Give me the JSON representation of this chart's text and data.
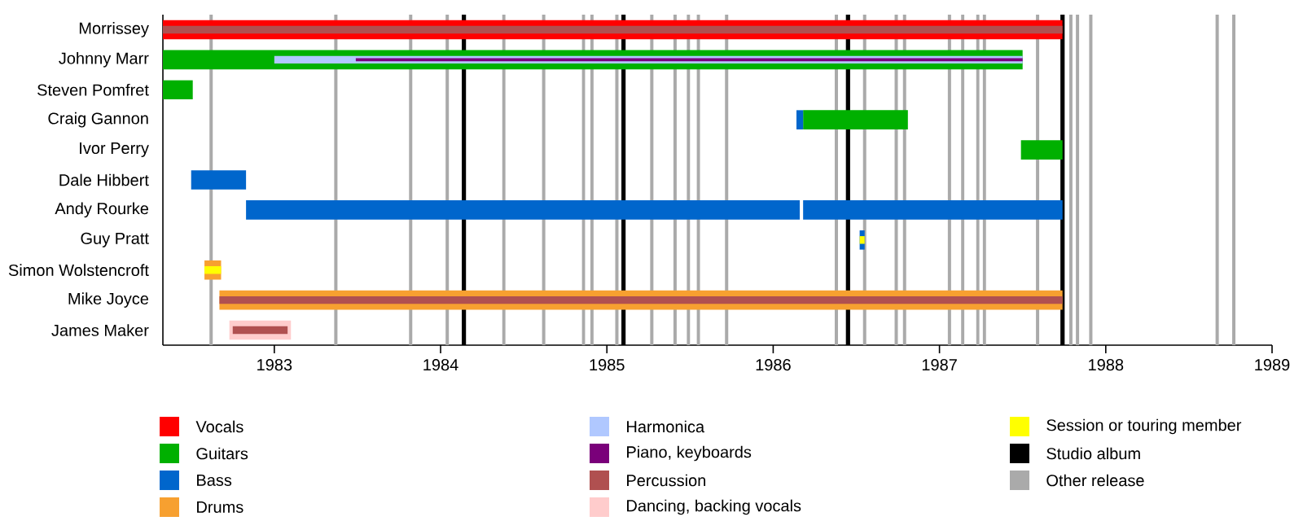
{
  "chart_data": {
    "type": "bar",
    "orientation": "horizontal",
    "categories": [
      "Morrissey",
      "Johnny Marr",
      "Steven Pomfret",
      "Craig Gannon",
      "Ivor Perry",
      "Dale Hibbert",
      "Andy Rourke",
      "Guy Pratt",
      "Simon Wolstencroft",
      "Mike Joyce",
      "James Maker"
    ],
    "series": [
      {
        "name": "Vocals",
        "color": "#ff0000",
        "base": [
          1982.33,
          null,
          null,
          null,
          null,
          null,
          null,
          null,
          null,
          null,
          null
        ],
        "values": [
          5.41,
          null,
          null,
          null,
          null,
          null,
          null,
          null,
          null,
          null,
          null
        ]
      },
      {
        "name": "Guitars",
        "color": "#00b000",
        "base": [
          null,
          1982.33,
          1982.33,
          1986.18,
          1987.49,
          null,
          null,
          null,
          null,
          null,
          null
        ],
        "values": [
          null,
          5.17,
          0.18,
          0.63,
          0.25,
          null,
          null,
          null,
          null,
          null,
          null
        ]
      },
      {
        "name": "Bass",
        "color": "#0066cc",
        "base": [
          null,
          null,
          null,
          1986.14,
          null,
          1982.5,
          1982.83,
          1986.52,
          null,
          null,
          null
        ],
        "values": [
          null,
          null,
          null,
          0.04,
          null,
          0.33,
          3.33,
          0.03,
          null,
          null,
          null
        ]
      },
      {
        "color": "#0066cc",
        "base": [
          null,
          null,
          null,
          null,
          null,
          null,
          1986.18,
          null,
          null,
          null,
          null
        ],
        "values": [
          null,
          null,
          null,
          null,
          null,
          null,
          1.56,
          null,
          null,
          null,
          null
        ]
      },
      {
        "name": "Drums",
        "color": "#f7a030",
        "base": [
          null,
          null,
          null,
          null,
          null,
          null,
          null,
          null,
          1982.58,
          1982.67,
          null
        ],
        "values": [
          null,
          null,
          null,
          null,
          null,
          null,
          null,
          null,
          0.1,
          5.07,
          null
        ]
      },
      {
        "name": "Harmonica",
        "color": "#b0c8ff",
        "base": [
          null,
          1983.0,
          null,
          null,
          null,
          null,
          null,
          null,
          null,
          null,
          null
        ],
        "values": [
          null,
          4.5,
          null,
          null,
          null,
          null,
          null,
          null,
          null,
          null,
          null
        ]
      },
      {
        "name": "Piano, keyboards",
        "color": "#7a007a",
        "base": [
          null,
          1983.49,
          null,
          null,
          null,
          null,
          null,
          null,
          null,
          null,
          null
        ],
        "values": [
          null,
          4.01,
          null,
          null,
          null,
          null,
          null,
          null,
          null,
          null,
          null
        ]
      },
      {
        "name": "Percussion",
        "color": "#b05050",
        "base": [
          1982.33,
          null,
          null,
          null,
          null,
          null,
          null,
          null,
          null,
          1982.67,
          1982.75
        ],
        "values": [
          5.41,
          null,
          null,
          null,
          null,
          null,
          null,
          null,
          null,
          5.07,
          0.33
        ]
      },
      {
        "name": "Dancing, backing vocals",
        "color": "#ffcccc",
        "base": [
          null,
          null,
          null,
          null,
          null,
          null,
          null,
          null,
          null,
          null,
          1982.73
        ],
        "values": [
          null,
          null,
          null,
          null,
          null,
          null,
          null,
          null,
          null,
          null,
          0.37
        ]
      },
      {
        "name": "Session or touring member",
        "color": "#ffff00",
        "base": [
          null,
          null,
          null,
          null,
          null,
          null,
          null,
          1986.52,
          1982.58,
          null,
          null
        ],
        "values": [
          null,
          null,
          null,
          null,
          null,
          null,
          null,
          0.03,
          0.1,
          null,
          null
        ]
      }
    ],
    "ref_lines": [
      {
        "axis": "x",
        "value": 1982.62,
        "color": "#aaaaaa"
      },
      {
        "axis": "x",
        "value": 1983.37,
        "color": "#aaaaaa"
      },
      {
        "axis": "x",
        "value": 1983.82,
        "color": "#aaaaaa"
      },
      {
        "axis": "x",
        "value": 1984.04,
        "color": "#aaaaaa"
      },
      {
        "axis": "x",
        "value": 1984.38,
        "color": "#aaaaaa"
      },
      {
        "axis": "x",
        "value": 1984.62,
        "color": "#aaaaaa"
      },
      {
        "axis": "x",
        "value": 1984.86,
        "color": "#aaaaaa"
      },
      {
        "axis": "x",
        "value": 1984.91,
        "color": "#aaaaaa"
      },
      {
        "axis": "x",
        "value": 1985.06,
        "color": "#aaaaaa"
      },
      {
        "axis": "x",
        "value": 1985.27,
        "color": "#aaaaaa"
      },
      {
        "axis": "x",
        "value": 1985.41,
        "color": "#aaaaaa"
      },
      {
        "axis": "x",
        "value": 1985.49,
        "color": "#aaaaaa"
      },
      {
        "axis": "x",
        "value": 1985.55,
        "color": "#aaaaaa"
      },
      {
        "axis": "x",
        "value": 1985.72,
        "color": "#aaaaaa"
      },
      {
        "axis": "x",
        "value": 1986.38,
        "color": "#aaaaaa"
      },
      {
        "axis": "x",
        "value": 1986.55,
        "color": "#aaaaaa"
      },
      {
        "axis": "x",
        "value": 1986.74,
        "color": "#aaaaaa"
      },
      {
        "axis": "x",
        "value": 1986.79,
        "color": "#aaaaaa"
      },
      {
        "axis": "x",
        "value": 1987.06,
        "color": "#aaaaaa"
      },
      {
        "axis": "x",
        "value": 1987.14,
        "color": "#aaaaaa"
      },
      {
        "axis": "x",
        "value": 1987.23,
        "color": "#aaaaaa"
      },
      {
        "axis": "x",
        "value": 1987.27,
        "color": "#aaaaaa"
      },
      {
        "axis": "x",
        "value": 1987.59,
        "color": "#aaaaaa"
      },
      {
        "axis": "x",
        "value": 1987.79,
        "color": "#aaaaaa"
      },
      {
        "axis": "x",
        "value": 1987.83,
        "color": "#aaaaaa"
      },
      {
        "axis": "x",
        "value": 1987.91,
        "color": "#aaaaaa"
      },
      {
        "axis": "x",
        "value": 1988.67,
        "color": "#aaaaaa"
      },
      {
        "axis": "x",
        "value": 1988.77,
        "color": "#aaaaaa"
      },
      {
        "axis": "x",
        "value": 1984.14,
        "color": "#000000"
      },
      {
        "axis": "x",
        "value": 1985.1,
        "color": "#000000"
      },
      {
        "axis": "x",
        "value": 1986.45,
        "color": "#000000"
      },
      {
        "axis": "x",
        "value": 1987.74,
        "color": "#000000"
      }
    ],
    "annotations": [
      "Studio album",
      "Other release"
    ],
    "xlim": [
      1982.33,
      1989
    ],
    "xticks": [
      1983,
      1984,
      1985,
      1986,
      1987,
      1988,
      1989
    ],
    "legend": "bottom"
  }
}
